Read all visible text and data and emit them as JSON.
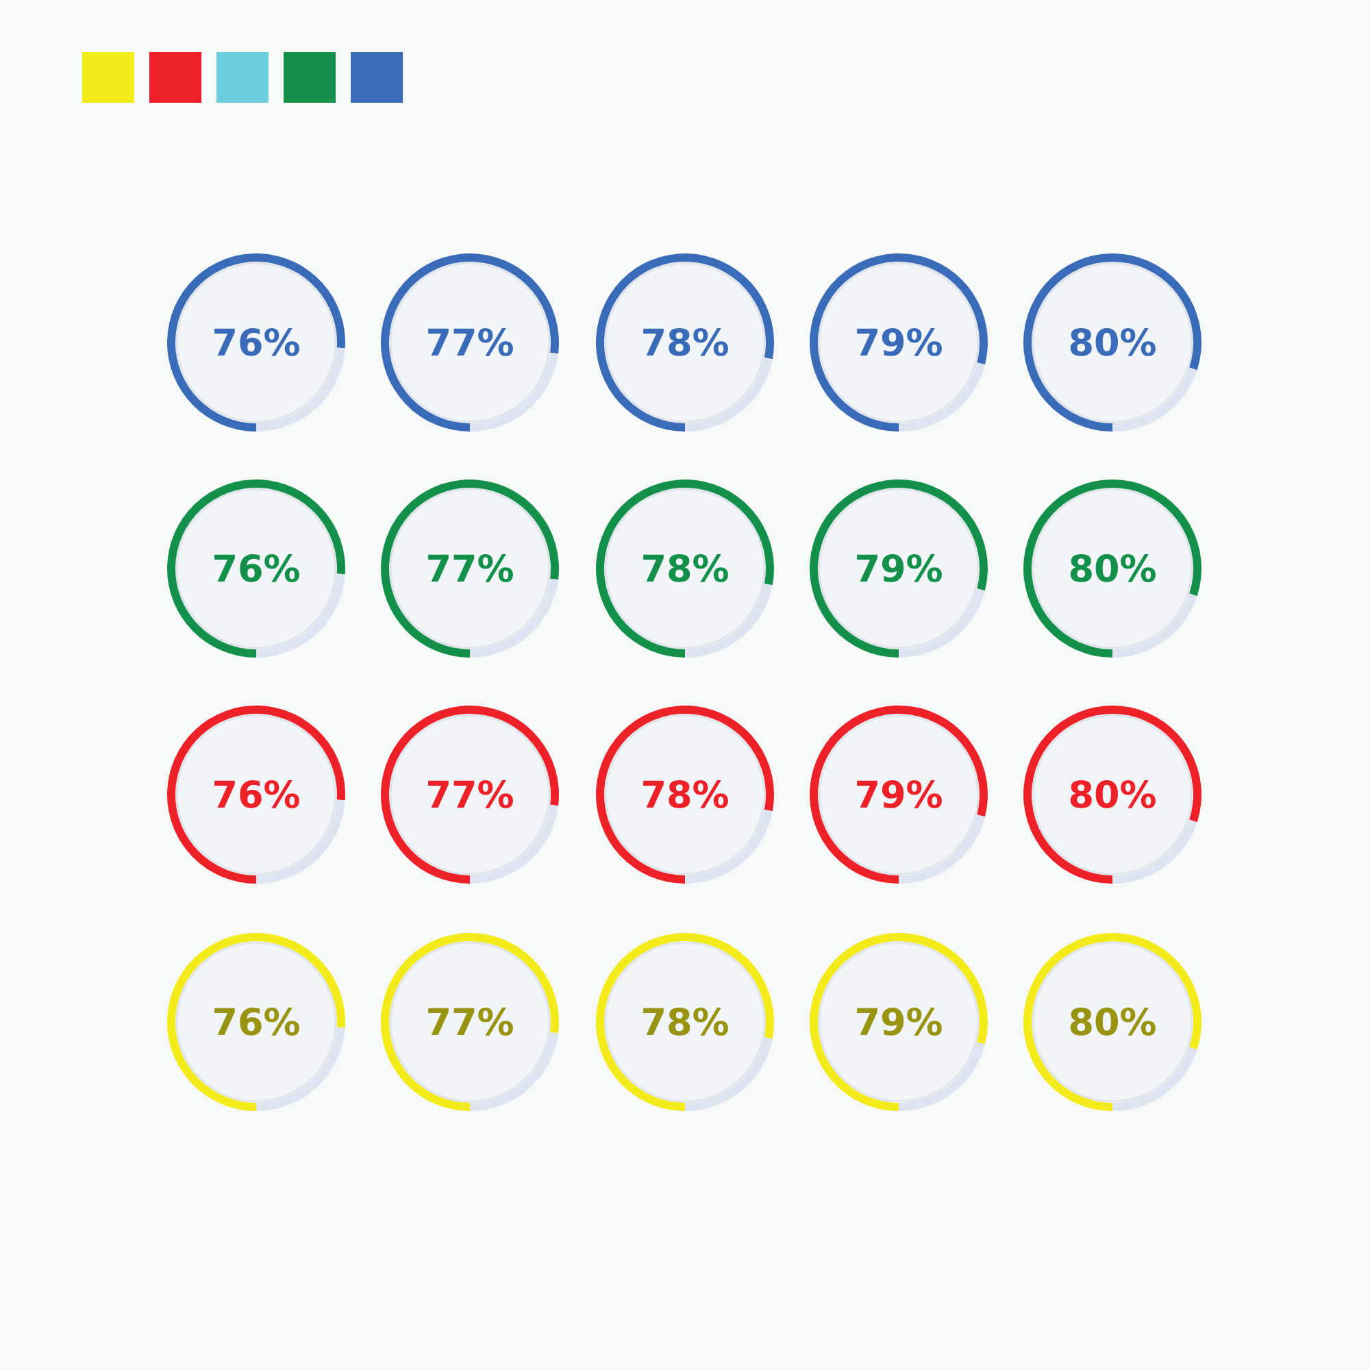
{
  "chart_data": [
    {
      "type": "donut",
      "categories": [
        null,
        null
      ],
      "values": [
        76,
        24
      ],
      "colors": [
        "#3a6bb8",
        "#dde4f0"
      ],
      "annotations": [
        "76%"
      ]
    },
    {
      "type": "donut",
      "categories": [
        null,
        null
      ],
      "values": [
        77,
        23
      ],
      "colors": [
        "#3a6bb8",
        "#dde4f0"
      ],
      "annotations": [
        "77%"
      ]
    },
    {
      "type": "donut",
      "categories": [
        null,
        null
      ],
      "values": [
        78,
        22
      ],
      "colors": [
        "#3a6bb8",
        "#dde4f0"
      ],
      "annotations": [
        "78%"
      ]
    },
    {
      "type": "donut",
      "categories": [
        null,
        null
      ],
      "values": [
        79,
        21
      ],
      "colors": [
        "#3a6bb8",
        "#dde4f0"
      ],
      "annotations": [
        "79%"
      ]
    },
    {
      "type": "donut",
      "categories": [
        null,
        null
      ],
      "values": [
        80,
        20
      ],
      "colors": [
        "#3a6bb8",
        "#dde4f0"
      ],
      "annotations": [
        "80%"
      ]
    },
    {
      "type": "donut",
      "categories": [
        null,
        null
      ],
      "values": [
        76,
        24
      ],
      "colors": [
        "#13914a",
        "#dde4f0"
      ],
      "annotations": [
        "76%"
      ]
    },
    {
      "type": "donut",
      "categories": [
        null,
        null
      ],
      "values": [
        77,
        23
      ],
      "colors": [
        "#13914a",
        "#dde4f0"
      ],
      "annotations": [
        "77%"
      ]
    },
    {
      "type": "donut",
      "categories": [
        null,
        null
      ],
      "values": [
        78,
        22
      ],
      "colors": [
        "#13914a",
        "#dde4f0"
      ],
      "annotations": [
        "78%"
      ]
    },
    {
      "type": "donut",
      "categories": [
        null,
        null
      ],
      "values": [
        79,
        21
      ],
      "colors": [
        "#13914a",
        "#dde4f0"
      ],
      "annotations": [
        "79%"
      ]
    },
    {
      "type": "donut",
      "categories": [
        null,
        null
      ],
      "values": [
        80,
        20
      ],
      "colors": [
        "#13914a",
        "#dde4f0"
      ],
      "annotations": [
        "80%"
      ]
    },
    {
      "type": "donut",
      "categories": [
        null,
        null
      ],
      "values": [
        76,
        24
      ],
      "colors": [
        "#ee2128",
        "#dde4f0"
      ],
      "annotations": [
        "76%"
      ]
    },
    {
      "type": "donut",
      "categories": [
        null,
        null
      ],
      "values": [
        77,
        23
      ],
      "colors": [
        "#ee2128",
        "#dde4f0"
      ],
      "annotations": [
        "77%"
      ]
    },
    {
      "type": "donut",
      "categories": [
        null,
        null
      ],
      "values": [
        78,
        22
      ],
      "colors": [
        "#ee2128",
        "#dde4f0"
      ],
      "annotations": [
        "78%"
      ]
    },
    {
      "type": "donut",
      "categories": [
        null,
        null
      ],
      "values": [
        79,
        21
      ],
      "colors": [
        "#ee2128",
        "#dde4f0"
      ],
      "annotations": [
        "79%"
      ]
    },
    {
      "type": "donut",
      "categories": [
        null,
        null
      ],
      "values": [
        80,
        20
      ],
      "colors": [
        "#ee2128",
        "#dde4f0"
      ],
      "annotations": [
        "80%"
      ]
    },
    {
      "type": "donut",
      "categories": [
        null,
        null
      ],
      "values": [
        76,
        24
      ],
      "colors": [
        "#f2ea19",
        "#dde4f0"
      ],
      "annotations": [
        "76%"
      ]
    },
    {
      "type": "donut",
      "categories": [
        null,
        null
      ],
      "values": [
        77,
        23
      ],
      "colors": [
        "#f2ea19",
        "#dde4f0"
      ],
      "annotations": [
        "77%"
      ]
    },
    {
      "type": "donut",
      "categories": [
        null,
        null
      ],
      "values": [
        78,
        22
      ],
      "colors": [
        "#f2ea19",
        "#dde4f0"
      ],
      "annotations": [
        "78%"
      ]
    },
    {
      "type": "donut",
      "categories": [
        null,
        null
      ],
      "values": [
        79,
        21
      ],
      "colors": [
        "#f2ea19",
        "#dde4f0"
      ],
      "annotations": [
        "79%"
      ]
    },
    {
      "type": "donut",
      "categories": [
        null,
        null
      ],
      "values": [
        80,
        20
      ],
      "colors": [
        "#f2ea19",
        "#dde4f0"
      ],
      "annotations": [
        "80%"
      ]
    }
  ]
}
